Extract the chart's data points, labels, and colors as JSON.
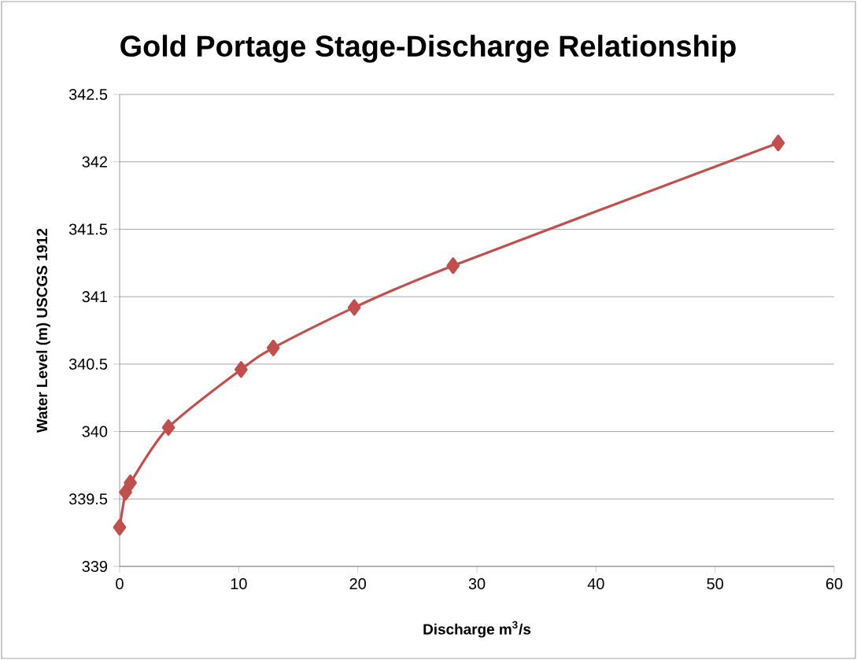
{
  "chart_data": {
    "type": "line",
    "title": "Gold Portage Stage-Discharge Relationship",
    "xlabel": "Discharge m$^{3}$/s",
    "ylabel": "Water Level (m) USCGS 1912",
    "series": [
      {
        "color": "#c0504d",
        "x": [
          0,
          0.5,
          0.9,
          4.1,
          10.2,
          12.9,
          19.7,
          28.0,
          55.3
        ],
        "values": [
          339.29,
          339.55,
          339.62,
          340.03,
          340.46,
          340.62,
          340.92,
          341.23,
          342.14
        ]
      }
    ],
    "xlim": [
      0,
      60
    ],
    "ylim": [
      339,
      342.5
    ],
    "xticks": [
      0,
      10,
      20,
      30,
      40,
      50,
      60
    ],
    "yticks": [
      339,
      339.5,
      340,
      340.5,
      341,
      341.5,
      342,
      342.5
    ],
    "grid": "y",
    "marker": "diamond",
    "line_style": "solid"
  }
}
